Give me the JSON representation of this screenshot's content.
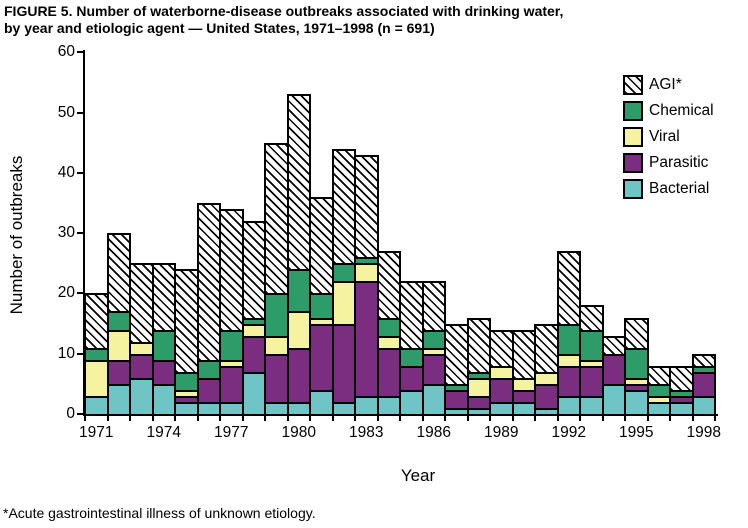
{
  "title": {
    "line1": "FIGURE 5.  Number of waterborne-disease outbreaks associated with drinking water,",
    "line2": "by year and etiologic agent — United States, 1971–1998 (n = 691)"
  },
  "footnote": "*Acute gastrointestinal illness of unknown etiology.",
  "colors": {
    "bacterial": "#6FC5C5",
    "parasitic": "#7B2D80",
    "viral": "#F5F2A0",
    "chemical": "#2E9C68",
    "agi_hatch_fg": "#000000",
    "agi_hatch_bg": "#FFFFFF",
    "axis": "#000000"
  },
  "legend": [
    {
      "label": "AGI*",
      "key": "agi"
    },
    {
      "label": "Chemical",
      "key": "chemical"
    },
    {
      "label": "Viral",
      "key": "viral"
    },
    {
      "label": "Parasitic",
      "key": "parasitic"
    },
    {
      "label": "Bacterial",
      "key": "bacterial"
    }
  ],
  "chart_data": {
    "type": "bar",
    "stacked": true,
    "title": "FIGURE 5. Number of waterborne-disease outbreaks associated with drinking water, by year and etiologic agent — United States, 1971–1998 (n = 691)",
    "xlabel": "Year",
    "ylabel": "Number of outbreaks",
    "ylim": [
      0,
      60
    ],
    "yticks": [
      0,
      10,
      20,
      30,
      40,
      50,
      60
    ],
    "categories": [
      1971,
      1972,
      1973,
      1974,
      1975,
      1976,
      1977,
      1978,
      1979,
      1980,
      1981,
      1982,
      1983,
      1984,
      1985,
      1986,
      1987,
      1988,
      1989,
      1990,
      1991,
      1992,
      1993,
      1994,
      1995,
      1996,
      1997,
      1998
    ],
    "xtick_labeled_years": [
      1971,
      1974,
      1977,
      1980,
      1983,
      1986,
      1989,
      1992,
      1995,
      1998
    ],
    "series": [
      {
        "name": "Bacterial",
        "key": "bacterial",
        "values": [
          3,
          5,
          6,
          5,
          2,
          2,
          2,
          7,
          2,
          2,
          4,
          2,
          3,
          3,
          4,
          5,
          1,
          1,
          2,
          2,
          1,
          3,
          3,
          5,
          4,
          2,
          2,
          3
        ]
      },
      {
        "name": "Parasitic",
        "key": "parasitic",
        "values": [
          0,
          4,
          4,
          4,
          1,
          4,
          6,
          6,
          8,
          9,
          11,
          13,
          19,
          8,
          4,
          5,
          3,
          2,
          4,
          2,
          4,
          5,
          5,
          5,
          1,
          0,
          1,
          4
        ]
      },
      {
        "name": "Viral",
        "key": "viral",
        "values": [
          6,
          5,
          2,
          0,
          1,
          0,
          1,
          2,
          3,
          6,
          1,
          7,
          3,
          2,
          0,
          1,
          0,
          3,
          2,
          2,
          2,
          2,
          1,
          0,
          1,
          1,
          0,
          0
        ]
      },
      {
        "name": "Chemical",
        "key": "chemical",
        "values": [
          2,
          3,
          0,
          5,
          3,
          3,
          5,
          1,
          7,
          7,
          4,
          3,
          1,
          3,
          3,
          3,
          1,
          1,
          0,
          0,
          0,
          5,
          5,
          0,
          5,
          2,
          1,
          1
        ]
      },
      {
        "name": "AGI",
        "key": "agi",
        "values": [
          9,
          13,
          13,
          11,
          17,
          26,
          20,
          16,
          25,
          29,
          16,
          19,
          17,
          11,
          11,
          8,
          10,
          9,
          6,
          8,
          8,
          12,
          4,
          3,
          5,
          3,
          4,
          2
        ]
      }
    ],
    "totals_by_year": [
      20,
      30,
      25,
      25,
      24,
      35,
      34,
      32,
      45,
      53,
      36,
      44,
      43,
      27,
      22,
      22,
      15,
      16,
      14,
      14,
      15,
      27,
      18,
      13,
      16,
      8,
      8,
      10
    ],
    "n_total": 691,
    "legend_position": "upper right",
    "grid": false
  }
}
